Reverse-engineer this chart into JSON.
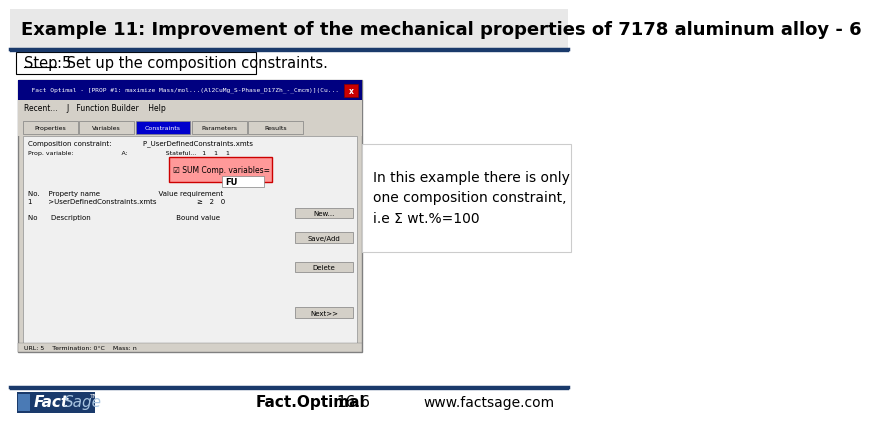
{
  "title": "Example 11: Improvement of the mechanical properties of 7178 aluminum alloy - 6",
  "title_fontsize": 13,
  "step_text": "Step 5",
  "step_desc": ": Set up the composition constraints.",
  "step_fontsize": 10.5,
  "annotation_text": "In this example there is only\none composition constraint,\ni.e Σ wt.%=100",
  "annotation_fontsize": 10,
  "footer_center_bold": "Fact.Optimal",
  "footer_center_reg": "  16.6",
  "footer_right": "www.factsage.com",
  "footer_fontsize": 10,
  "bg_color": "#ffffff",
  "header_line_color": "#1a3a6b",
  "footer_line_color": "#1a3a6b"
}
